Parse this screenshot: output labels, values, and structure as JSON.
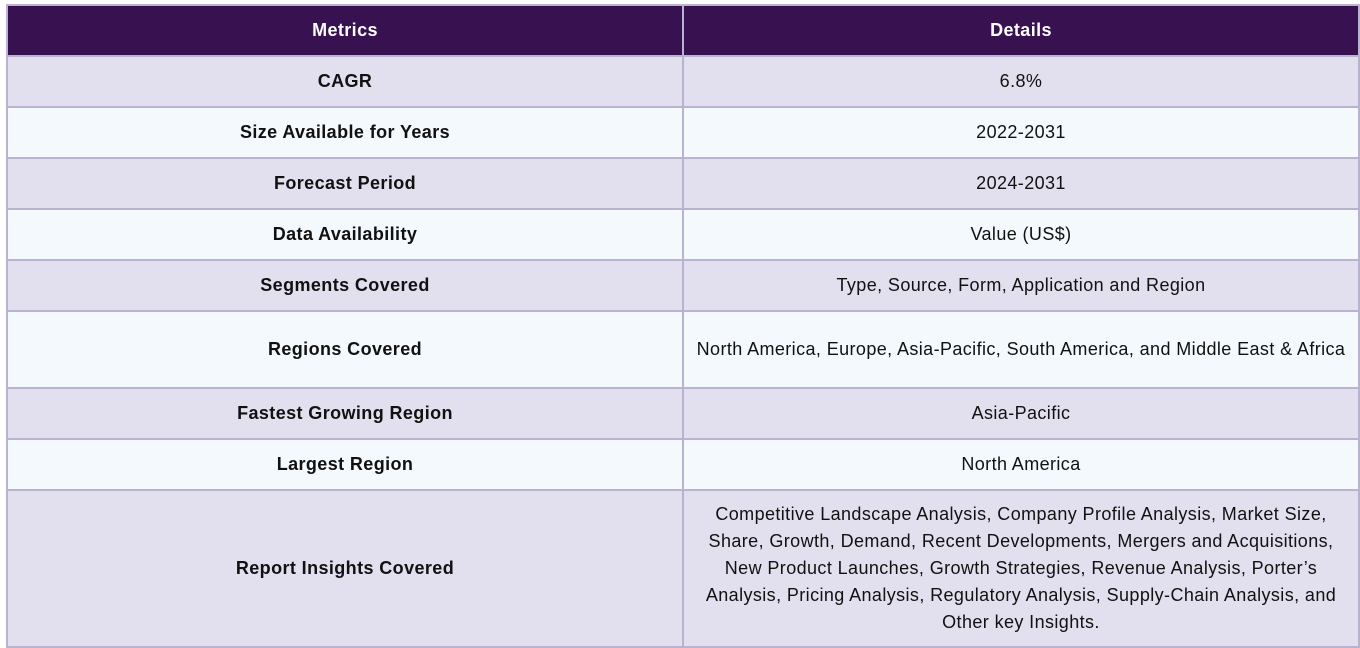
{
  "table": {
    "headers": [
      "Metrics",
      "Details"
    ],
    "rows": [
      {
        "metric": "CAGR",
        "detail": "6.8%"
      },
      {
        "metric": "Size Available for Years",
        "detail": "2022-2031"
      },
      {
        "metric": "Forecast Period",
        "detail": "2024-2031"
      },
      {
        "metric": "Data Availability",
        "detail": "Value (US$)"
      },
      {
        "metric": "Segments Covered",
        "detail": "Type, Source, Form, Application and Region"
      },
      {
        "metric": "Regions Covered",
        "detail": "North America, Europe, Asia-Pacific, South America, and Middle East & Africa"
      },
      {
        "metric": "Fastest Growing Region",
        "detail": "Asia-Pacific"
      },
      {
        "metric": "Largest Region",
        "detail": "North America"
      },
      {
        "metric": "Report Insights Covered",
        "detail": "Competitive Landscape Analysis, Company Profile Analysis, Market Size, Share, Growth, Demand, Recent Developments, Mergers and Acquisitions, New Product Launches, Growth Strategies, Revenue Analysis, Porter’s Analysis, Pricing Analysis, Regulatory Analysis, Supply-Chain Analysis, and Other key Insights."
      }
    ]
  },
  "colors": {
    "header_bg": "#381250",
    "row_odd_bg": "#e2e0ee",
    "row_even_bg": "#f3f9fc",
    "border": "#b9b3cf"
  }
}
